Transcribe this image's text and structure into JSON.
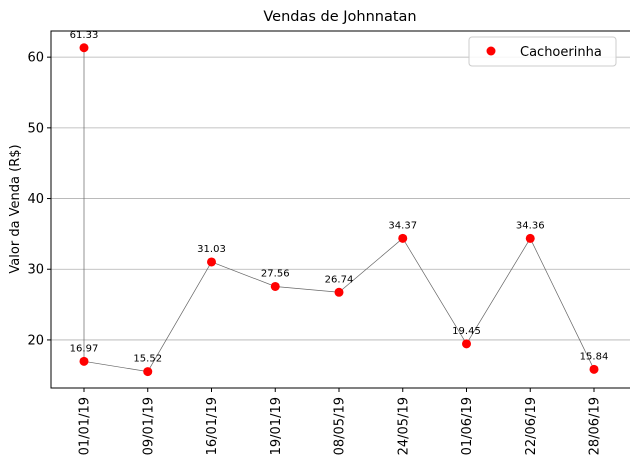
{
  "chart_data": {
    "type": "scatter",
    "title": "Vendas de Johnnatan",
    "xlabel": "",
    "ylabel": "Valor da Venda (R$)",
    "x": [
      "01/01/19",
      "01/01/19",
      "09/01/19",
      "16/01/19",
      "19/01/19",
      "08/05/19",
      "24/05/19",
      "01/06/19",
      "22/06/19",
      "28/06/19"
    ],
    "categories": [
      "01/01/19",
      "09/01/19",
      "16/01/19",
      "19/01/19",
      "08/05/19",
      "24/05/19",
      "01/06/19",
      "22/06/19",
      "28/06/19"
    ],
    "series": [
      {
        "name": "Cachoerinha",
        "values": [
          61.33,
          16.97,
          15.52,
          31.03,
          27.56,
          26.74,
          34.37,
          19.45,
          34.36,
          15.84
        ],
        "value_labels": [
          "61.33",
          "16.97",
          "15.52",
          "31.03",
          "27.56",
          "26.74",
          "34.37",
          "19.45",
          "34.36",
          "15.84"
        ],
        "color": "#ff0000"
      }
    ],
    "line_color": "#666666",
    "y_ticks": [
      20,
      30,
      40,
      50,
      60
    ],
    "y_tick_labels": [
      "20",
      "30",
      "40",
      "50",
      "60"
    ],
    "ylim": [
      13.2,
      63.7
    ],
    "grid": "y",
    "legend": "top-right"
  }
}
